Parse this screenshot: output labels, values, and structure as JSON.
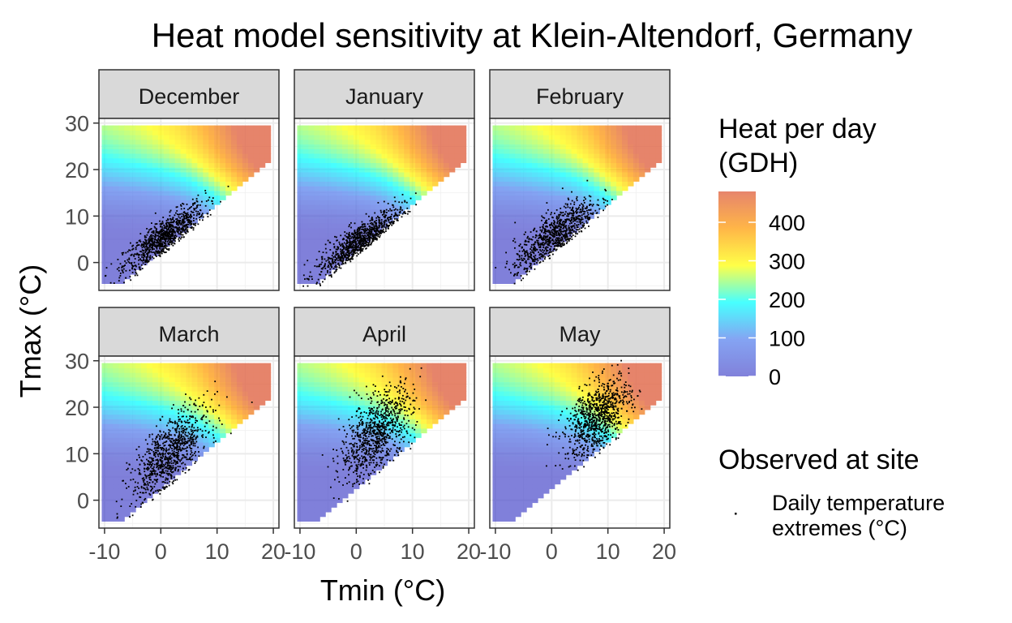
{
  "chart_data": {
    "type": "heatmap",
    "title": "Heat model sensitivity at Klein-Altendorf, Germany",
    "xlabel": "Tmin (°C)",
    "ylabel": "Tmax (°C)",
    "xlim": [
      -11,
      21
    ],
    "ylim": [
      -6,
      31
    ],
    "x_ticks": [
      -10,
      0,
      10,
      20
    ],
    "y_ticks": [
      0,
      10,
      20,
      30
    ],
    "x_tick_labels": [
      "-10",
      "0",
      "10",
      "20"
    ],
    "y_tick_labels": [
      "0",
      "10",
      "20",
      "30"
    ],
    "grid": true,
    "heatmap_domain": {
      "tmin_range": [
        -10,
        19
      ],
      "tmax_range": [
        -4,
        29
      ],
      "tmax_min_minus_tmin": 3
    },
    "panels": [
      {
        "month": "December",
        "points": {
          "center": [
            0.5,
            5.5
          ],
          "sd": [
            3.6,
            3.6
          ],
          "rho": 0.83,
          "count": 900
        }
      },
      {
        "month": "January",
        "points": {
          "center": [
            0.5,
            4.5
          ],
          "sd": [
            3.8,
            3.7
          ],
          "rho": 0.84,
          "count": 900
        }
      },
      {
        "month": "February",
        "points": {
          "center": [
            0.5,
            6.0
          ],
          "sd": [
            3.6,
            4.0
          ],
          "rho": 0.78,
          "count": 850
        }
      },
      {
        "month": "March",
        "points": {
          "center": [
            1.5,
            10.0
          ],
          "sd": [
            3.4,
            5.0
          ],
          "rho": 0.68,
          "count": 900
        }
      },
      {
        "month": "April",
        "points": {
          "center": [
            3.5,
            14.5
          ],
          "sd": [
            3.2,
            5.0
          ],
          "rho": 0.55,
          "count": 900
        }
      },
      {
        "month": "May",
        "points": {
          "center": [
            8.0,
            18.0
          ],
          "sd": [
            2.9,
            4.3
          ],
          "rho": 0.52,
          "count": 900
        }
      }
    ],
    "legend": {
      "placement": "right",
      "fill_title": "Heat per day\n(GDH)",
      "fill_breaks": [
        0,
        100,
        200,
        300,
        400
      ],
      "fill_break_labels": [
        "0",
        "100",
        "200",
        "300",
        "400"
      ],
      "fill_limits": [
        0,
        480
      ],
      "colors": [
        "#5050cc",
        "#5580ee",
        "#00ffff",
        "#ffff00",
        "#ff9900",
        "#dd5533"
      ],
      "point_title": "Observed at site",
      "point_label": "Daily temperature\nextremes (°C)"
    }
  }
}
